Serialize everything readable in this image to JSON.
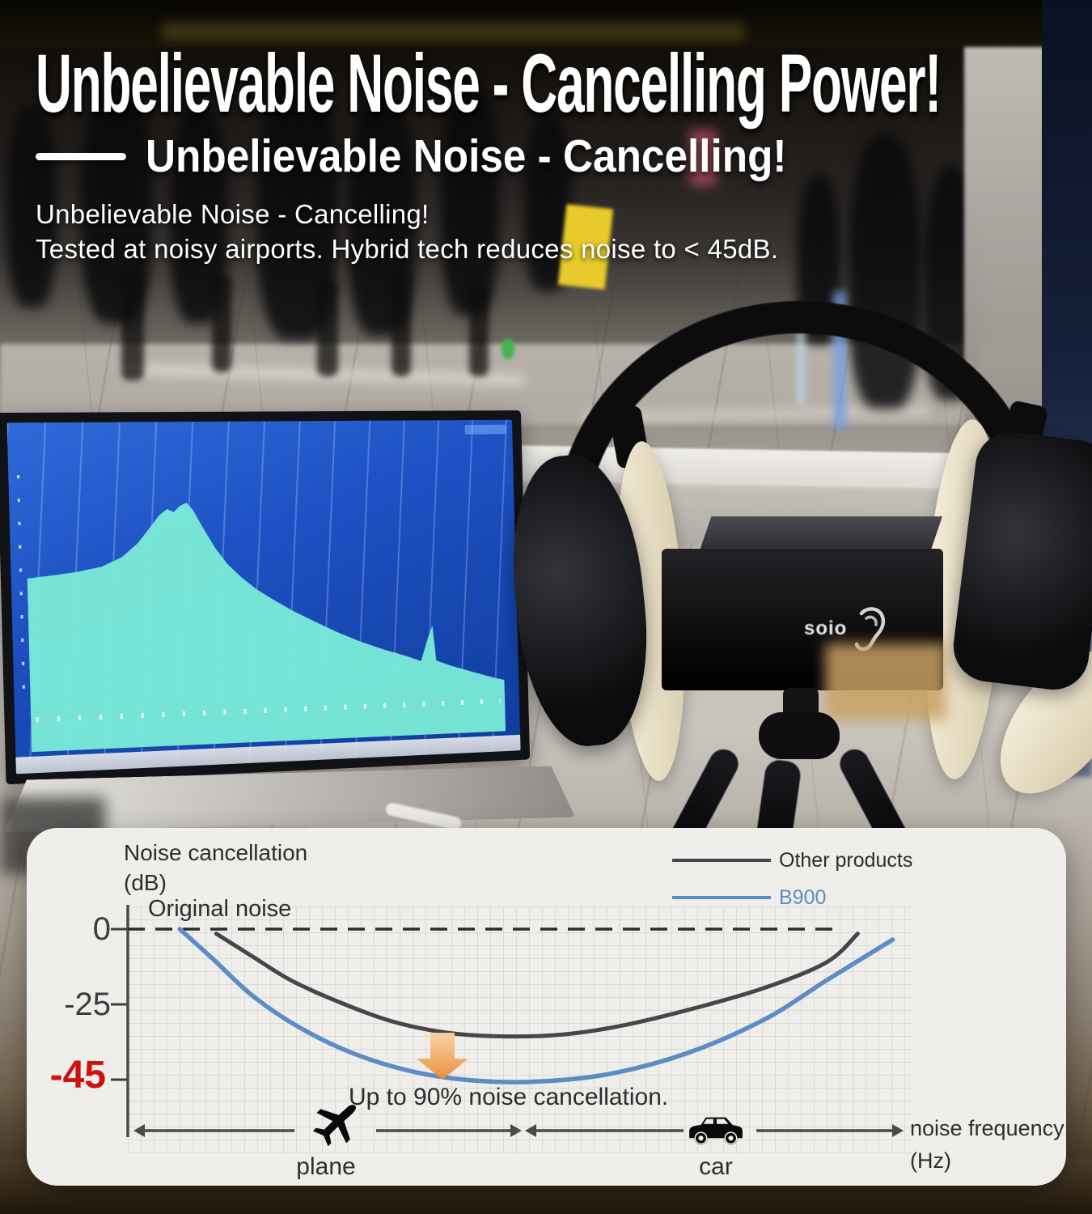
{
  "header": {
    "headline": "Unbelievable Noise - Cancelling Power!",
    "subtitle": "Unbelievable Noise - Cancelling!",
    "body_lines": [
      "Unbelievable Noise - Cancelling!",
      "Tested at noisy airports. Hybrid tech reduces noise to < 45dB."
    ]
  },
  "photo": {
    "device_logo": "soio"
  },
  "chart_data": {
    "type": "line",
    "title": "",
    "ylabel_lines": [
      "Noise cancellation",
      "(dB)"
    ],
    "xlabel_lines": [
      "noise frequency",
      "(Hz)"
    ],
    "baseline_label": "Original noise",
    "baseline_value_db": 0,
    "annotation": "Up to 90% noise cancellation.",
    "ytick_labels": [
      "0",
      "-25",
      "-45"
    ],
    "yticks_db": [
      0,
      -25,
      -45
    ],
    "ytick_colors": [
      "#3d3d3d",
      "#3d3d3d",
      "#cc1312"
    ],
    "ylim": [
      -50,
      5
    ],
    "grid": true,
    "legend_position": "top-right",
    "x_zones": [
      {
        "label": "plane",
        "icon": "plane-icon"
      },
      {
        "label": "car",
        "icon": "car-icon"
      }
    ],
    "series": [
      {
        "name": "Other products",
        "color": "#46464a",
        "min_db": -33.5,
        "points": [
          [
            0.114,
            -1.5
          ],
          [
            0.16,
            -9
          ],
          [
            0.21,
            -17
          ],
          [
            0.27,
            -24
          ],
          [
            0.34,
            -29.5
          ],
          [
            0.41,
            -32.5
          ],
          [
            0.48,
            -33.5
          ],
          [
            0.56,
            -33
          ],
          [
            0.64,
            -30.5
          ],
          [
            0.73,
            -26
          ],
          [
            0.82,
            -19.5
          ],
          [
            0.9,
            -11
          ],
          [
            0.94,
            -1.5
          ]
        ]
      },
      {
        "name": "B900",
        "color": "#5b8dc4",
        "min_db": -45.5,
        "points": [
          [
            0.067,
            0
          ],
          [
            0.11,
            -10
          ],
          [
            0.16,
            -22
          ],
          [
            0.22,
            -31
          ],
          [
            0.29,
            -38
          ],
          [
            0.37,
            -43
          ],
          [
            0.45,
            -45.3
          ],
          [
            0.53,
            -45.5
          ],
          [
            0.62,
            -43.5
          ],
          [
            0.72,
            -38
          ],
          [
            0.82,
            -29
          ],
          [
            0.9,
            -17
          ],
          [
            0.985,
            -3.5
          ]
        ]
      }
    ],
    "accent": {
      "orange_top": "#f8d2a2",
      "orange_bottom": "#ea8a35",
      "red": "#cc1312",
      "blue": "#5b8dc4"
    }
  }
}
